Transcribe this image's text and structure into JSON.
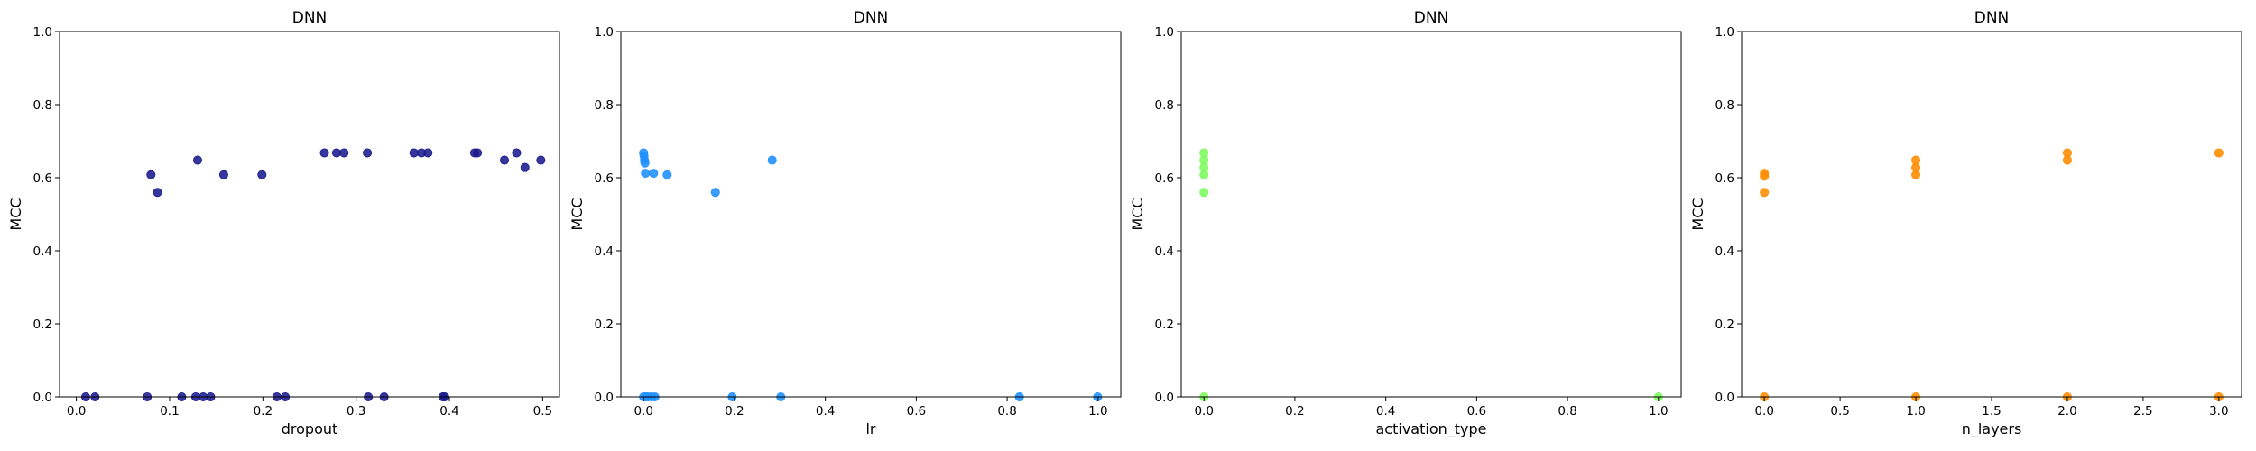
{
  "chart_data": [
    {
      "type": "scatter",
      "title": "DNN",
      "xlabel": "dropout",
      "ylabel": "MCC",
      "xlim": [
        -0.018,
        0.518
      ],
      "ylim": [
        0.0,
        1.0
      ],
      "xticks": [
        0.0,
        0.1,
        0.2,
        0.3,
        0.4,
        0.5
      ],
      "xtick_labels": [
        "0.0",
        "0.1",
        "0.2",
        "0.3",
        "0.4",
        "0.5"
      ],
      "yticks": [
        0.0,
        0.2,
        0.4,
        0.6,
        0.8,
        1.0
      ],
      "ytick_labels": [
        "0.0",
        "0.2",
        "0.4",
        "0.6",
        "0.8",
        "1.0"
      ],
      "color": "#1a1a8e",
      "grid": false,
      "points": [
        {
          "x": 0.01,
          "y": 0.0
        },
        {
          "x": 0.02,
          "y": 0.0
        },
        {
          "x": 0.076,
          "y": 0.0
        },
        {
          "x": 0.08,
          "y": 0.608
        },
        {
          "x": 0.087,
          "y": 0.56
        },
        {
          "x": 0.113,
          "y": 0.0
        },
        {
          "x": 0.128,
          "y": 0.0
        },
        {
          "x": 0.13,
          "y": 0.648
        },
        {
          "x": 0.136,
          "y": 0.0
        },
        {
          "x": 0.144,
          "y": 0.0
        },
        {
          "x": 0.158,
          "y": 0.608
        },
        {
          "x": 0.199,
          "y": 0.608
        },
        {
          "x": 0.215,
          "y": 0.0
        },
        {
          "x": 0.224,
          "y": 0.0
        },
        {
          "x": 0.266,
          "y": 0.668
        },
        {
          "x": 0.279,
          "y": 0.668
        },
        {
          "x": 0.287,
          "y": 0.668
        },
        {
          "x": 0.312,
          "y": 0.668
        },
        {
          "x": 0.313,
          "y": 0.0
        },
        {
          "x": 0.33,
          "y": 0.0
        },
        {
          "x": 0.362,
          "y": 0.668
        },
        {
          "x": 0.37,
          "y": 0.668
        },
        {
          "x": 0.377,
          "y": 0.668
        },
        {
          "x": 0.393,
          "y": 0.0
        },
        {
          "x": 0.395,
          "y": 0.0
        },
        {
          "x": 0.427,
          "y": 0.668
        },
        {
          "x": 0.43,
          "y": 0.668
        },
        {
          "x": 0.459,
          "y": 0.648
        },
        {
          "x": 0.472,
          "y": 0.668
        },
        {
          "x": 0.481,
          "y": 0.628
        },
        {
          "x": 0.498,
          "y": 0.648
        }
      ]
    },
    {
      "type": "scatter",
      "title": "DNN",
      "xlabel": "lr",
      "ylabel": "MCC",
      "xlim": [
        -0.05,
        1.05
      ],
      "ylim": [
        0.0,
        1.0
      ],
      "xticks": [
        0.0,
        0.2,
        0.4,
        0.6,
        0.8,
        1.0
      ],
      "xtick_labels": [
        "0.0",
        "0.2",
        "0.4",
        "0.6",
        "0.8",
        "1.0"
      ],
      "yticks": [
        0.0,
        0.2,
        0.4,
        0.6,
        0.8,
        1.0
      ],
      "ytick_labels": [
        "0.0",
        "0.2",
        "0.4",
        "0.6",
        "0.8",
        "1.0"
      ],
      "color": "#1e90ff",
      "grid": false,
      "points": [
        {
          "x": 0.0,
          "y": 0.668
        },
        {
          "x": 0.001,
          "y": 0.66
        },
        {
          "x": 0.002,
          "y": 0.648
        },
        {
          "x": 0.003,
          "y": 0.64
        },
        {
          "x": 0.004,
          "y": 0.612
        },
        {
          "x": 0.0,
          "y": 0.0
        },
        {
          "x": 0.005,
          "y": 0.0
        },
        {
          "x": 0.01,
          "y": 0.0
        },
        {
          "x": 0.018,
          "y": 0.0
        },
        {
          "x": 0.025,
          "y": 0.0
        },
        {
          "x": 0.022,
          "y": 0.612
        },
        {
          "x": 0.052,
          "y": 0.608
        },
        {
          "x": 0.158,
          "y": 0.56
        },
        {
          "x": 0.195,
          "y": 0.0
        },
        {
          "x": 0.283,
          "y": 0.648
        },
        {
          "x": 0.302,
          "y": 0.0
        },
        {
          "x": 0.827,
          "y": 0.0
        },
        {
          "x": 0.999,
          "y": 0.0
        }
      ]
    },
    {
      "type": "scatter",
      "title": "DNN",
      "xlabel": "activation_type",
      "ylabel": "MCC",
      "xlim": [
        -0.05,
        1.05
      ],
      "ylim": [
        0.0,
        1.0
      ],
      "xticks": [
        0.0,
        0.2,
        0.4,
        0.6,
        0.8,
        1.0
      ],
      "xtick_labels": [
        "0.0",
        "0.2",
        "0.4",
        "0.6",
        "0.8",
        "1.0"
      ],
      "yticks": [
        0.0,
        0.2,
        0.4,
        0.6,
        0.8,
        1.0
      ],
      "ytick_labels": [
        "0.0",
        "0.2",
        "0.4",
        "0.6",
        "0.8",
        "1.0"
      ],
      "color": "#7cfc5c",
      "grid": false,
      "points": [
        {
          "x": 0.0,
          "y": 0.668
        },
        {
          "x": 0.0,
          "y": 0.648
        },
        {
          "x": 0.0,
          "y": 0.628
        },
        {
          "x": 0.0,
          "y": 0.608
        },
        {
          "x": 0.0,
          "y": 0.56
        },
        {
          "x": 0.0,
          "y": 0.0
        },
        {
          "x": 1.0,
          "y": 0.0
        }
      ]
    },
    {
      "type": "scatter",
      "title": "DNN",
      "xlabel": "n_layers",
      "ylabel": "MCC",
      "xlim": [
        -0.15,
        3.15
      ],
      "ylim": [
        0.0,
        1.0
      ],
      "xticks": [
        0.0,
        0.5,
        1.0,
        1.5,
        2.0,
        2.5,
        3.0
      ],
      "xtick_labels": [
        "0.0",
        "0.5",
        "1.0",
        "1.5",
        "2.0",
        "2.5",
        "3.0"
      ],
      "yticks": [
        0.0,
        0.2,
        0.4,
        0.6,
        0.8,
        1.0
      ],
      "ytick_labels": [
        "0.0",
        "0.2",
        "0.4",
        "0.6",
        "0.8",
        "1.0"
      ],
      "color": "#ff8c00",
      "grid": false,
      "points": [
        {
          "x": 0.0,
          "y": 0.612
        },
        {
          "x": 0.0,
          "y": 0.604
        },
        {
          "x": 0.0,
          "y": 0.56
        },
        {
          "x": 0.0,
          "y": 0.0
        },
        {
          "x": 1.0,
          "y": 0.648
        },
        {
          "x": 1.0,
          "y": 0.628
        },
        {
          "x": 1.0,
          "y": 0.608
        },
        {
          "x": 1.0,
          "y": 0.0
        },
        {
          "x": 2.0,
          "y": 0.668
        },
        {
          "x": 2.0,
          "y": 0.648
        },
        {
          "x": 2.0,
          "y": 0.0
        },
        {
          "x": 3.0,
          "y": 0.668
        },
        {
          "x": 3.0,
          "y": 0.0
        }
      ]
    }
  ]
}
